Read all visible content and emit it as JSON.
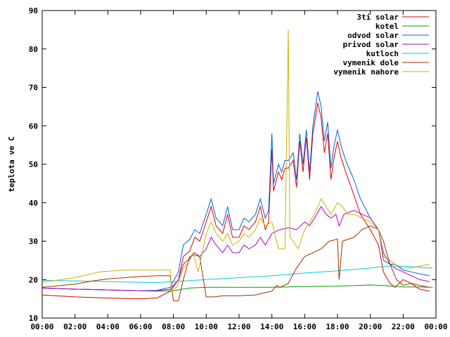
{
  "chart_data": {
    "type": "line",
    "title": "",
    "xlabel": "",
    "ylabel": "teplota ve C",
    "ylim": [
      10,
      90
    ],
    "xlim_hours": [
      0,
      24
    ],
    "grid": false,
    "legend_position": "top-right",
    "x_ticks": [
      "00:00",
      "02:00",
      "04:00",
      "06:00",
      "08:00",
      "10:00",
      "12:00",
      "14:00",
      "16:00",
      "18:00",
      "20:00",
      "22:00",
      "00:00"
    ],
    "y_ticks": [
      "10",
      "20",
      "30",
      "40",
      "50",
      "60",
      "70",
      "80",
      "90"
    ],
    "series": [
      {
        "name": "3ti solar",
        "color": "#e00000",
        "points": [
          [
            0,
            16
          ],
          [
            2,
            15.5
          ],
          [
            4,
            15.2
          ],
          [
            6,
            15
          ],
          [
            7,
            15.2
          ],
          [
            7.8,
            17
          ],
          [
            8.3,
            20
          ],
          [
            8.6,
            26
          ],
          [
            9,
            27.5
          ],
          [
            9.3,
            31
          ],
          [
            9.6,
            30
          ],
          [
            10,
            35
          ],
          [
            10.3,
            39
          ],
          [
            10.6,
            34
          ],
          [
            11,
            32
          ],
          [
            11.3,
            37
          ],
          [
            11.6,
            31
          ],
          [
            12,
            31
          ],
          [
            12.3,
            34
          ],
          [
            12.6,
            33
          ],
          [
            13,
            35
          ],
          [
            13.3,
            39
          ],
          [
            13.6,
            33
          ],
          [
            13.8,
            35
          ],
          [
            14,
            54
          ],
          [
            14.1,
            43
          ],
          [
            14.4,
            48
          ],
          [
            14.6,
            46
          ],
          [
            14.8,
            49
          ],
          [
            15,
            49
          ],
          [
            15.3,
            51
          ],
          [
            15.5,
            44
          ],
          [
            15.7,
            56
          ],
          [
            15.9,
            48
          ],
          [
            16.1,
            57
          ],
          [
            16.3,
            46
          ],
          [
            16.5,
            58
          ],
          [
            16.8,
            66
          ],
          [
            17,
            62
          ],
          [
            17.2,
            53
          ],
          [
            17.4,
            58
          ],
          [
            17.6,
            46
          ],
          [
            17.8,
            52
          ],
          [
            18,
            56
          ],
          [
            18.2,
            52
          ],
          [
            18.5,
            48
          ],
          [
            19,
            42
          ],
          [
            19.4,
            37
          ],
          [
            20,
            33
          ],
          [
            20.5,
            29
          ],
          [
            20.8,
            22
          ],
          [
            21.2,
            19
          ],
          [
            21.5,
            18
          ],
          [
            22,
            20
          ],
          [
            22.5,
            19
          ],
          [
            23,
            17.5
          ],
          [
            23.6,
            17
          ]
        ]
      },
      {
        "name": "kotel",
        "color": "#00a000",
        "points": [
          [
            0,
            17.8
          ],
          [
            2,
            17.5
          ],
          [
            4,
            17.3
          ],
          [
            6,
            17.1
          ],
          [
            7,
            17
          ],
          [
            8,
            17.1
          ],
          [
            9,
            17.8
          ],
          [
            10,
            18
          ],
          [
            12,
            18
          ],
          [
            14,
            18
          ],
          [
            16,
            18.2
          ],
          [
            18,
            18.3
          ],
          [
            20,
            18.6
          ],
          [
            21,
            18.4
          ],
          [
            22,
            18.1
          ],
          [
            23,
            18.1
          ],
          [
            23.8,
            18
          ]
        ]
      },
      {
        "name": "odvod solar",
        "color": "#0060e0",
        "points": [
          [
            0,
            17.8
          ],
          [
            2,
            17.5
          ],
          [
            4,
            17.3
          ],
          [
            6,
            17.1
          ],
          [
            7,
            17.2
          ],
          [
            7.8,
            18
          ],
          [
            8.3,
            22
          ],
          [
            8.6,
            29
          ],
          [
            9,
            30.5
          ],
          [
            9.3,
            33
          ],
          [
            9.6,
            32
          ],
          [
            10,
            37
          ],
          [
            10.3,
            41
          ],
          [
            10.6,
            36
          ],
          [
            11,
            34
          ],
          [
            11.3,
            39
          ],
          [
            11.6,
            33
          ],
          [
            12,
            33
          ],
          [
            12.3,
            36
          ],
          [
            12.6,
            35
          ],
          [
            13,
            37
          ],
          [
            13.3,
            41
          ],
          [
            13.6,
            36
          ],
          [
            13.8,
            38
          ],
          [
            14,
            58
          ],
          [
            14.1,
            45
          ],
          [
            14.4,
            50
          ],
          [
            14.6,
            48
          ],
          [
            14.8,
            51
          ],
          [
            15,
            51
          ],
          [
            15.3,
            53
          ],
          [
            15.5,
            46
          ],
          [
            15.7,
            58
          ],
          [
            15.9,
            50
          ],
          [
            16.1,
            59
          ],
          [
            16.3,
            48
          ],
          [
            16.5,
            60
          ],
          [
            16.8,
            69
          ],
          [
            17,
            65
          ],
          [
            17.2,
            56
          ],
          [
            17.4,
            61
          ],
          [
            17.6,
            49
          ],
          [
            17.8,
            55
          ],
          [
            18,
            59
          ],
          [
            18.2,
            55
          ],
          [
            18.5,
            51
          ],
          [
            19,
            46
          ],
          [
            19.4,
            41
          ],
          [
            20,
            36
          ],
          [
            20.5,
            33
          ],
          [
            20.8,
            25
          ],
          [
            21.2,
            24
          ],
          [
            21.5,
            24
          ],
          [
            22,
            22.5
          ],
          [
            22.5,
            22
          ],
          [
            23,
            21.5
          ],
          [
            23.6,
            21
          ]
        ]
      },
      {
        "name": "privod solar",
        "color": "#b000c8",
        "points": [
          [
            0,
            17.8
          ],
          [
            2,
            17.5
          ],
          [
            4,
            17.3
          ],
          [
            6,
            17.1
          ],
          [
            7,
            17.1
          ],
          [
            7.8,
            17.5
          ],
          [
            8.3,
            20
          ],
          [
            8.6,
            24
          ],
          [
            9,
            25.5
          ],
          [
            9.3,
            27
          ],
          [
            9.6,
            26
          ],
          [
            10,
            28
          ],
          [
            10.3,
            31
          ],
          [
            10.6,
            29
          ],
          [
            11,
            27
          ],
          [
            11.3,
            29
          ],
          [
            11.6,
            27
          ],
          [
            12,
            27
          ],
          [
            12.3,
            29
          ],
          [
            12.6,
            28
          ],
          [
            13,
            29
          ],
          [
            13.3,
            31
          ],
          [
            13.6,
            29
          ],
          [
            14,
            32
          ],
          [
            14.5,
            33
          ],
          [
            15,
            33.5
          ],
          [
            15.5,
            33
          ],
          [
            16,
            35
          ],
          [
            16.3,
            34
          ],
          [
            16.6,
            36
          ],
          [
            17,
            39
          ],
          [
            17.3,
            37
          ],
          [
            17.6,
            36
          ],
          [
            17.9,
            37
          ],
          [
            18.1,
            34
          ],
          [
            18.4,
            37
          ],
          [
            19,
            38
          ],
          [
            19.5,
            37
          ],
          [
            20,
            36
          ],
          [
            20.5,
            33
          ],
          [
            20.8,
            27
          ],
          [
            21.2,
            24
          ],
          [
            21.5,
            23
          ],
          [
            22,
            22
          ],
          [
            22.5,
            21
          ],
          [
            23,
            20
          ],
          [
            23.6,
            19.5
          ]
        ]
      },
      {
        "name": "kutloch",
        "color": "#00d0d0",
        "points": [
          [
            0,
            19.8
          ],
          [
            4,
            19.5
          ],
          [
            6,
            19.3
          ],
          [
            7,
            19.2
          ],
          [
            8,
            19.5
          ],
          [
            10,
            20
          ],
          [
            12,
            20.5
          ],
          [
            14,
            21
          ],
          [
            16,
            21.7
          ],
          [
            18,
            22.3
          ],
          [
            20,
            23
          ],
          [
            21,
            23.5
          ],
          [
            22,
            23.5
          ],
          [
            23,
            23.2
          ],
          [
            23.8,
            23
          ]
        ]
      },
      {
        "name": "vymenik dole",
        "color": "#a03000",
        "points": [
          [
            0,
            18
          ],
          [
            2,
            18.8
          ],
          [
            3,
            19.6
          ],
          [
            4,
            20.2
          ],
          [
            6,
            20.8
          ],
          [
            7,
            21
          ],
          [
            7.8,
            21
          ],
          [
            8,
            14.5
          ],
          [
            8.3,
            14.5
          ],
          [
            8.6,
            20
          ],
          [
            9,
            26
          ],
          [
            9.2,
            26.5
          ],
          [
            9.6,
            26
          ],
          [
            10,
            15.5
          ],
          [
            10.5,
            15.5
          ],
          [
            11,
            15.8
          ],
          [
            12,
            15.8
          ],
          [
            13,
            16
          ],
          [
            14,
            17
          ],
          [
            14.3,
            18.5
          ],
          [
            14.5,
            18
          ],
          [
            15,
            19
          ],
          [
            15.5,
            23
          ],
          [
            16,
            26
          ],
          [
            16.5,
            27
          ],
          [
            17,
            28
          ],
          [
            17.5,
            30
          ],
          [
            18,
            30.5
          ],
          [
            18.1,
            20
          ],
          [
            18.3,
            30
          ],
          [
            19,
            31
          ],
          [
            19.5,
            33
          ],
          [
            20,
            34
          ],
          [
            20.5,
            33
          ],
          [
            20.8,
            30
          ],
          [
            21.2,
            24
          ],
          [
            21.6,
            20
          ],
          [
            22,
            18.5
          ],
          [
            22.5,
            19
          ],
          [
            23,
            18.5
          ],
          [
            23.6,
            18
          ]
        ]
      },
      {
        "name": "vymenik nahore",
        "color": "#c8b400",
        "points": [
          [
            0,
            19.3
          ],
          [
            2,
            20.5
          ],
          [
            3,
            21.5
          ],
          [
            3.5,
            22
          ],
          [
            5,
            22.5
          ],
          [
            6,
            22.5
          ],
          [
            7.8,
            22.5
          ],
          [
            7.9,
            17
          ],
          [
            8.2,
            18
          ],
          [
            8.6,
            23
          ],
          [
            9,
            25
          ],
          [
            9.2,
            27
          ],
          [
            9.5,
            22
          ],
          [
            10,
            32
          ],
          [
            10.3,
            35
          ],
          [
            10.6,
            32
          ],
          [
            11,
            30
          ],
          [
            11.3,
            32
          ],
          [
            11.6,
            29
          ],
          [
            12,
            30
          ],
          [
            12.3,
            32
          ],
          [
            12.6,
            31
          ],
          [
            13,
            33
          ],
          [
            13.3,
            36
          ],
          [
            13.6,
            34
          ],
          [
            14,
            35
          ],
          [
            14.4,
            28
          ],
          [
            14.8,
            28
          ],
          [
            15,
            85
          ],
          [
            15.1,
            31
          ],
          [
            15.3,
            30
          ],
          [
            15.6,
            28
          ],
          [
            16,
            33
          ],
          [
            16.3,
            35
          ],
          [
            16.6,
            37
          ],
          [
            17,
            41
          ],
          [
            17.3,
            39
          ],
          [
            17.6,
            37
          ],
          [
            18,
            40
          ],
          [
            18.3,
            39
          ],
          [
            18.6,
            37
          ],
          [
            19,
            37
          ],
          [
            19.5,
            36
          ],
          [
            20,
            35
          ],
          [
            20.5,
            33
          ],
          [
            20.8,
            26
          ],
          [
            21.2,
            25
          ],
          [
            21.5,
            24
          ],
          [
            22,
            23
          ],
          [
            22.5,
            23
          ],
          [
            23,
            23.5
          ],
          [
            23.6,
            24
          ]
        ]
      }
    ]
  }
}
